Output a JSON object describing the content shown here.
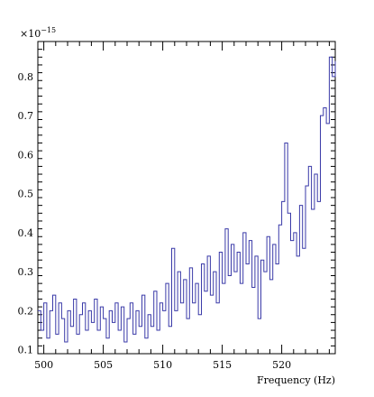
{
  "chart_data": {
    "type": "line",
    "title": "",
    "xlabel": "Frequency (Hz)",
    "ylabel": "",
    "y_multiplier_label": "×10",
    "y_multiplier_exponent": "−15",
    "xlim": [
      499.5,
      524.5
    ],
    "ylim": [
      0.09,
      0.89
    ],
    "grid": false,
    "line_color": "#3a3aa8",
    "x_major_ticks": [
      500,
      505,
      510,
      515,
      520
    ],
    "x_tick_labels": [
      "500",
      "505",
      "510",
      "515",
      "520"
    ],
    "y_major_ticks": [
      0.1,
      0.2,
      0.3,
      0.4,
      0.5,
      0.6,
      0.7,
      0.8
    ],
    "y_tick_labels": [
      "0.1",
      "0.2",
      "0.3",
      "0.4",
      "0.5",
      "0.6",
      "0.7",
      "0.8"
    ],
    "series": [
      {
        "x": [
          499.5,
          499.75,
          500.0,
          500.25,
          500.5,
          500.75,
          501.0,
          501.25,
          501.5,
          501.75,
          502.0,
          502.25,
          502.5,
          502.75,
          503.0,
          503.25,
          503.5,
          503.75,
          504.0,
          504.25,
          504.5,
          504.75,
          505.0,
          505.25,
          505.5,
          505.75,
          506.0,
          506.25,
          506.5,
          506.75,
          507.0,
          507.25,
          507.5,
          507.75,
          508.0,
          508.25,
          508.5,
          508.75,
          509.0,
          509.25,
          509.5,
          509.75,
          510.0,
          510.25,
          510.5,
          510.75,
          511.0,
          511.25,
          511.5,
          511.75,
          512.0,
          512.25,
          512.5,
          512.75,
          513.0,
          513.25,
          513.5,
          513.75,
          514.0,
          514.25,
          514.5,
          514.75,
          515.0,
          515.25,
          515.5,
          515.75,
          516.0,
          516.25,
          516.5,
          516.75,
          517.0,
          517.25,
          517.5,
          517.75,
          518.0,
          518.25,
          518.5,
          518.75,
          519.0,
          519.25,
          519.5,
          519.75,
          520.0,
          520.25,
          520.5,
          520.75,
          521.0,
          521.25,
          521.5,
          521.75,
          522.0,
          522.25,
          522.5,
          522.75,
          523.0,
          523.25,
          523.5,
          523.75,
          524.0,
          524.25,
          524.5
        ],
        "y": [
          0.2,
          0.15,
          0.22,
          0.13,
          0.2,
          0.24,
          0.14,
          0.22,
          0.18,
          0.12,
          0.2,
          0.16,
          0.23,
          0.14,
          0.19,
          0.22,
          0.15,
          0.2,
          0.17,
          0.23,
          0.15,
          0.21,
          0.18,
          0.13,
          0.2,
          0.17,
          0.22,
          0.15,
          0.21,
          0.12,
          0.18,
          0.22,
          0.14,
          0.2,
          0.16,
          0.24,
          0.13,
          0.19,
          0.16,
          0.25,
          0.15,
          0.22,
          0.2,
          0.27,
          0.16,
          0.36,
          0.2,
          0.3,
          0.22,
          0.28,
          0.18,
          0.31,
          0.22,
          0.27,
          0.19,
          0.32,
          0.25,
          0.34,
          0.24,
          0.3,
          0.22,
          0.35,
          0.27,
          0.41,
          0.29,
          0.37,
          0.3,
          0.35,
          0.27,
          0.4,
          0.32,
          0.38,
          0.26,
          0.34,
          0.18,
          0.33,
          0.3,
          0.39,
          0.28,
          0.37,
          0.32,
          0.42,
          0.48,
          0.63,
          0.45,
          0.38,
          0.4,
          0.34,
          0.47,
          0.36,
          0.52,
          0.57,
          0.46,
          0.55,
          0.48,
          0.7,
          0.72,
          0.68,
          0.85,
          0.8,
          0.84
        ]
      }
    ]
  }
}
